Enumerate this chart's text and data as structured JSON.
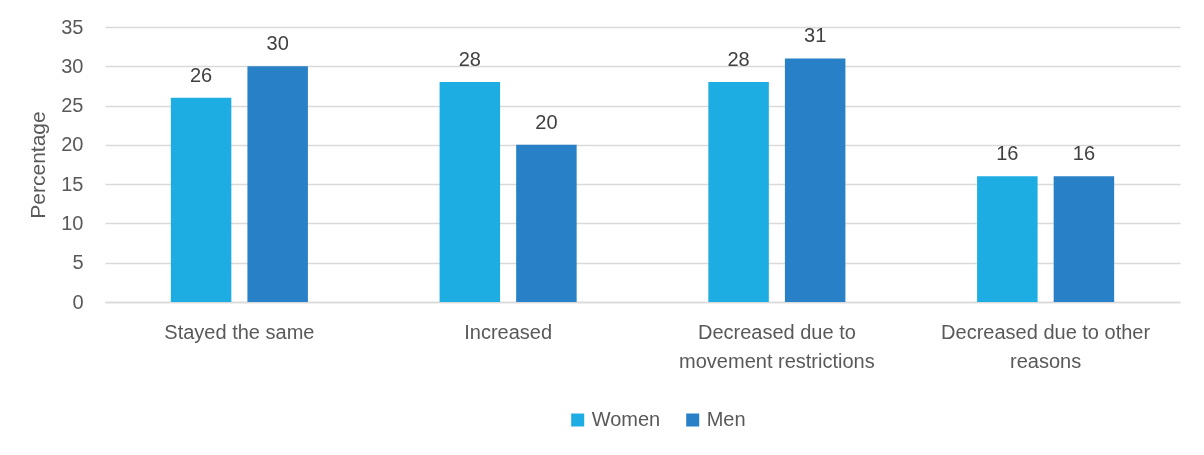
{
  "chart_data": {
    "type": "bar",
    "ylabel": "Percentage",
    "categories": [
      "Stayed the same",
      "Increased",
      "Decreased due to movement restrictions",
      "Decreased due to other reasons"
    ],
    "series": [
      {
        "name": "Women",
        "color": "#1eade3",
        "values": [
          26,
          28,
          28,
          16
        ]
      },
      {
        "name": "Men",
        "color": "#2881c6",
        "values": [
          30,
          20,
          31,
          16
        ]
      }
    ],
    "ylim": [
      0,
      35
    ],
    "yticks": [
      0,
      5,
      10,
      15,
      20,
      25,
      30,
      35
    ],
    "grid": "y",
    "legend": "bottom",
    "data_labels": true
  }
}
